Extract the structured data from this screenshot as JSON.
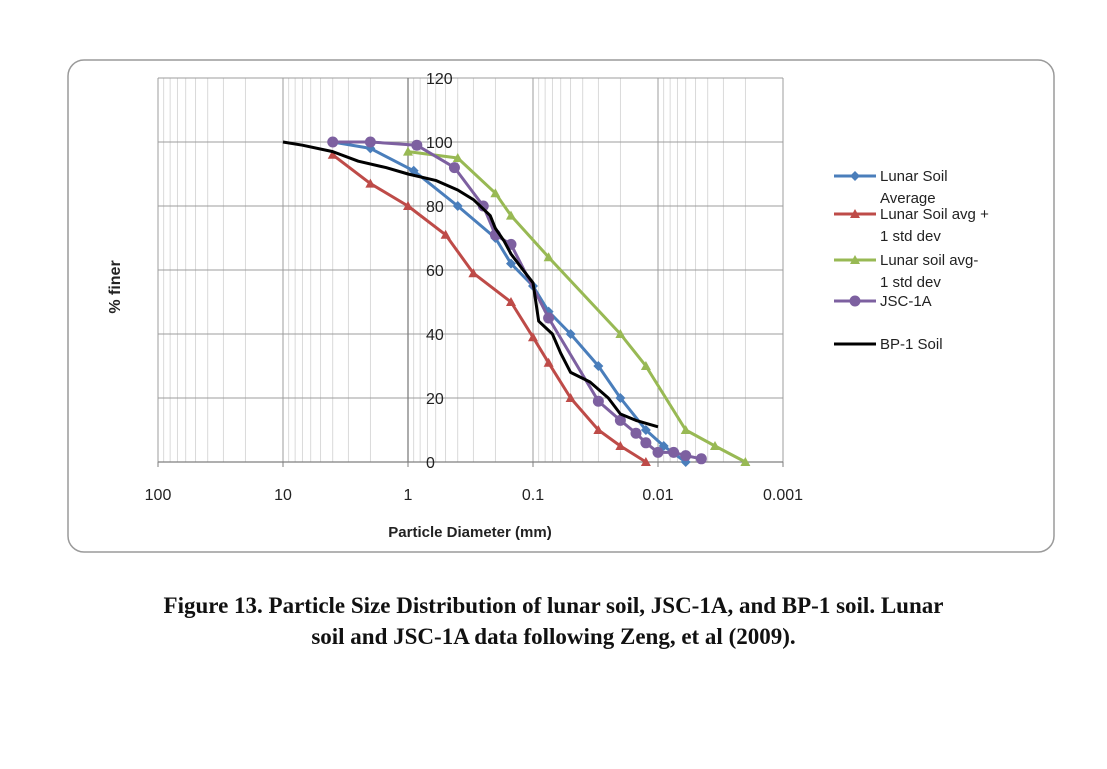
{
  "chart_data": {
    "type": "line",
    "xlabel": "Particle Diameter (mm)",
    "ylabel": "% finer",
    "x_scale": "log",
    "x_reversed": true,
    "xlim": [
      100,
      0.001
    ],
    "ylim": [
      0,
      120
    ],
    "x_ticks": [
      100,
      10,
      1,
      0.1,
      0.01,
      0.001
    ],
    "x_tick_labels": [
      "100",
      "10",
      "1",
      "0.1",
      "0.01",
      "0.001"
    ],
    "y_ticks": [
      0,
      20,
      40,
      60,
      80,
      100,
      120
    ],
    "y_tick_labels": [
      "0",
      "20",
      "40",
      "60",
      "80",
      "100",
      "120"
    ],
    "grid": true,
    "legend_position": "right",
    "series": [
      {
        "name": "Lunar Soil Average",
        "legend_lines": [
          "Lunar Soil",
          "Average"
        ],
        "color": "#4a7ebb",
        "marker": "diamond",
        "x": [
          4,
          2,
          0.9,
          0.4,
          0.2,
          0.15,
          0.1,
          0.075,
          0.05,
          0.03,
          0.02,
          0.0125,
          0.009,
          0.006
        ],
        "y": [
          100,
          98,
          91,
          80,
          70,
          62,
          55,
          47,
          40,
          30,
          20,
          10,
          5,
          0
        ]
      },
      {
        "name": "Lunar Soil avg + 1 std dev",
        "legend_lines": [
          "Lunar Soil avg +",
          "1 std dev"
        ],
        "color": "#be4b48",
        "marker": "triangle",
        "x": [
          4,
          2,
          1,
          0.5,
          0.3,
          0.15,
          0.1,
          0.075,
          0.05,
          0.03,
          0.02,
          0.0125
        ],
        "y": [
          96,
          87,
          80,
          71,
          59,
          50,
          39,
          31,
          20,
          10,
          5,
          0
        ]
      },
      {
        "name": "Lunar soil avg- 1 std dev",
        "legend_lines": [
          "Lunar soil avg-",
          "1 std dev"
        ],
        "color": "#98b954",
        "marker": "triangle",
        "x": [
          1,
          0.4,
          0.2,
          0.15,
          0.075,
          0.02,
          0.0125,
          0.006,
          0.0035,
          0.002
        ],
        "y": [
          97,
          95,
          84,
          77,
          64,
          40,
          30,
          10,
          5,
          0
        ]
      },
      {
        "name": "JSC-1A",
        "legend_lines": [
          "JSC-1A"
        ],
        "color": "#7d60a0",
        "marker": "circle",
        "x": [
          4,
          2,
          0.85,
          0.425,
          0.25,
          0.2,
          0.15,
          0.075,
          0.03,
          0.02,
          0.015,
          0.0125,
          0.01,
          0.0075,
          0.006,
          0.0045
        ],
        "y": [
          100,
          100,
          99,
          92,
          80,
          71,
          68,
          45,
          19,
          13,
          9,
          6,
          3,
          3,
          2,
          1
        ]
      },
      {
        "name": "BP-1 Soil",
        "legend_lines": [
          "BP-1 Soil"
        ],
        "color": "#000000",
        "marker": "none",
        "x": [
          10,
          7,
          4,
          2.5,
          1.5,
          1,
          0.6,
          0.4,
          0.3,
          0.22,
          0.2,
          0.17,
          0.15,
          0.12,
          0.1,
          0.09,
          0.07,
          0.06,
          0.05,
          0.035,
          0.025,
          0.02,
          0.015,
          0.01
        ],
        "y": [
          100,
          99,
          97,
          94,
          92,
          90,
          88,
          85,
          82,
          77,
          73,
          69,
          65,
          60,
          56,
          44,
          40,
          34,
          28,
          25,
          20,
          15,
          13,
          11
        ]
      }
    ]
  },
  "caption": {
    "line1": "Figure 13.  Particle Size Distribution of lunar soil, JSC-1A, and BP-1 soil.  Lunar",
    "line2": "soil and JSC-1A data following Zeng, et al (2009)."
  }
}
